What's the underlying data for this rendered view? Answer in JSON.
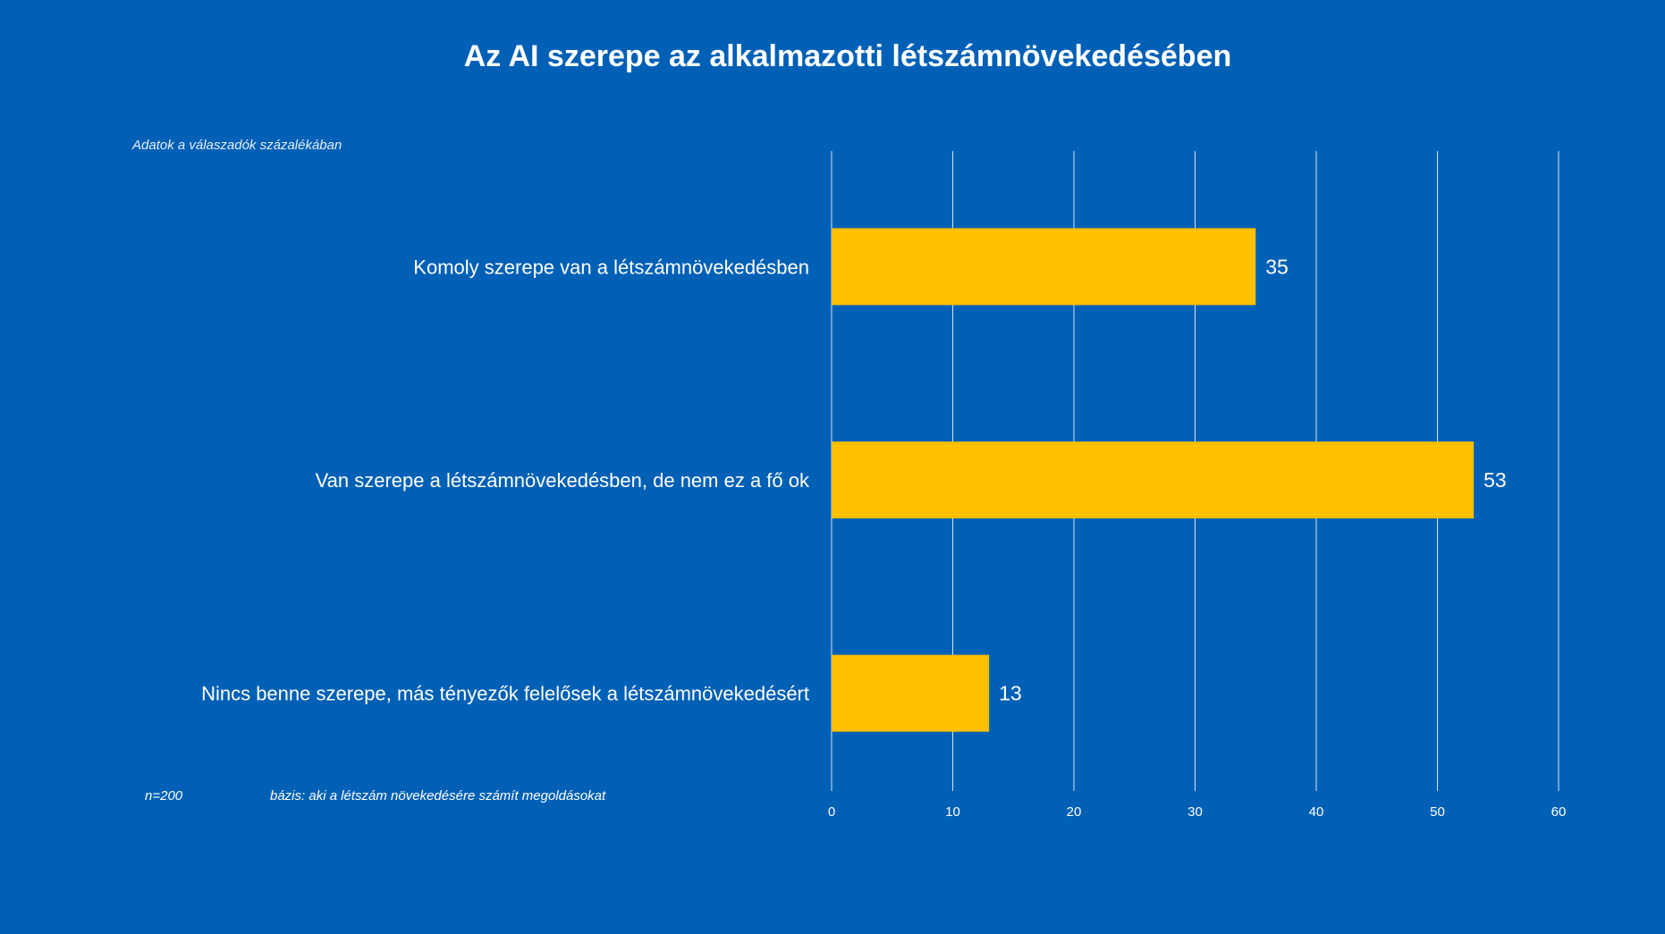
{
  "chart_data": {
    "type": "bar",
    "orientation": "horizontal",
    "title": "Az AI szerepe az alkalmazotti létszámnövekedésében",
    "subtitle": "Adatok a válaszadók százalékában",
    "categories": [
      "Komoly szerepe van a létszámnövekedésben",
      "Van szerepe a létszámnövekedésben, de nem ez a fő ok",
      "Nincs benne szerepe, más tényezők felelősek a létszámnövekedésért"
    ],
    "values": [
      35,
      53,
      13
    ],
    "xlim": [
      0,
      60
    ],
    "xticks": [
      "0",
      "10",
      "20",
      "30",
      "40",
      "50",
      "60"
    ],
    "grid": true,
    "legend": "none",
    "bar_color": "#FFC000",
    "background_color": "#0060B6"
  },
  "notes": {
    "sample": "n=200",
    "base": "bázis: aki a létszám növekedésére számít megoldásokat"
  }
}
